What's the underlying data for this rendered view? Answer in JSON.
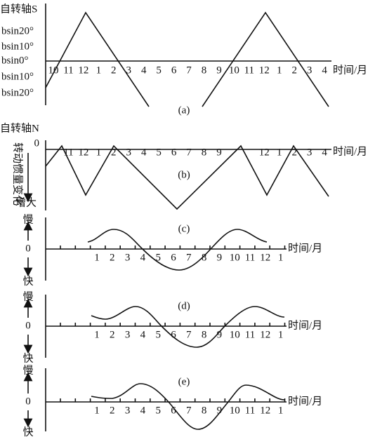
{
  "panels": [
    {
      "caption": "(a)",
      "axis_title": "自转轴S",
      "x_title": "时间/月",
      "y_labels": [
        "bsin20°",
        "bsin10°",
        "bsin0°",
        "bsin10°",
        "bsin20°"
      ],
      "x_labels": [
        "10",
        "11",
        "12",
        "1",
        "2",
        "3",
        "4",
        "5",
        "6",
        "7",
        "8",
        "9",
        "10",
        "11",
        "12",
        "1",
        "2",
        "3",
        "4"
      ]
    },
    {
      "caption": "(b)",
      "axis_title": "自转轴N",
      "x_title": "时间/月",
      "zero": "0",
      "side_label": "转动惯量变化",
      "side_end": "增大",
      "x_labels": [
        "11",
        "12",
        "1",
        "2",
        "3",
        "4",
        "5",
        "6",
        "7",
        "8",
        "9",
        "12",
        "1",
        "2",
        "3",
        "4"
      ]
    },
    {
      "caption": "(c)",
      "top": "慢",
      "zero": "0",
      "bottom": "快",
      "x_title": "时间/月",
      "x_labels": [
        "1",
        "2",
        "3",
        "4",
        "5",
        "6",
        "7",
        "8",
        "9",
        "10",
        "11",
        "12",
        "1"
      ]
    },
    {
      "caption": "(d)",
      "top": "慢",
      "zero": "0",
      "bottom": "快",
      "x_title": "时间/月",
      "x_labels": [
        "1",
        "2",
        "3",
        "4",
        "5",
        "6",
        "7",
        "8",
        "9",
        "10",
        "11",
        "12",
        "1"
      ]
    },
    {
      "caption": "(e)",
      "top": "慢",
      "zero": "0",
      "bottom": "快",
      "x_title": "时间/月",
      "x_labels": [
        "1",
        "2",
        "3",
        "4",
        "5",
        "6",
        "7",
        "8",
        "9",
        "10",
        "11",
        "12",
        "1"
      ]
    }
  ]
}
